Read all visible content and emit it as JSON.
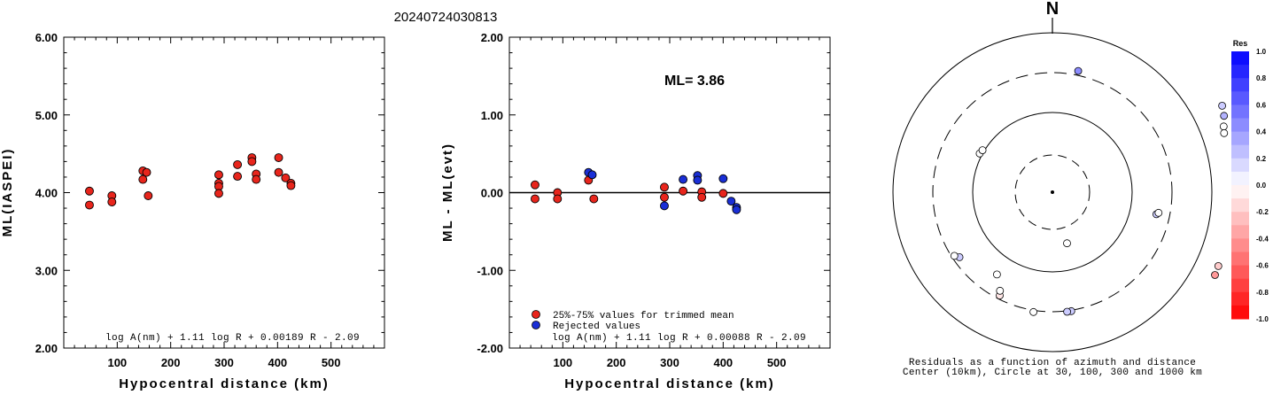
{
  "title": "20240724030813",
  "chart_data": [
    {
      "type": "scatter",
      "ylabel": "ML(IASPEI)",
      "xlabel": "Hypocentral distance (km)",
      "xlim": [
        0,
        600
      ],
      "ylim": [
        2.0,
        6.0
      ],
      "x_ticks": [
        "100",
        "200",
        "300",
        "400",
        "500"
      ],
      "y_ticks": [
        "2.00",
        "3.00",
        "4.00",
        "5.00",
        "6.00"
      ],
      "formula": "log A(nm) + 1.11 log R + 0.00189 R - 2.09",
      "series": [
        {
          "color": "#e8251c",
          "points": [
            [
              48,
              4.02
            ],
            [
              48,
              3.84
            ],
            [
              90,
              3.96
            ],
            [
              90,
              3.88
            ],
            [
              148,
              4.28
            ],
            [
              148,
              4.17
            ],
            [
              155,
              4.26
            ],
            [
              158,
              3.96
            ],
            [
              290,
              4.23
            ],
            [
              290,
              4.12
            ],
            [
              290,
              4.08
            ],
            [
              290,
              3.99
            ],
            [
              325,
              4.36
            ],
            [
              325,
              4.21
            ],
            [
              352,
              4.45
            ],
            [
              352,
              4.4
            ],
            [
              360,
              4.24
            ],
            [
              360,
              4.17
            ],
            [
              402,
              4.45
            ],
            [
              402,
              4.26
            ],
            [
              415,
              4.19
            ],
            [
              425,
              4.12
            ],
            [
              425,
              4.09
            ]
          ]
        }
      ]
    },
    {
      "type": "scatter",
      "ylabel": "ML - ML(evt)",
      "xlabel": "Hypocentral distance (km)",
      "xlim": [
        0,
        600
      ],
      "ylim": [
        -2.0,
        2.0
      ],
      "x_ticks": [
        "100",
        "200",
        "300",
        "400",
        "500"
      ],
      "y_ticks": [
        "-2.00",
        "-1.00",
        "0.00",
        "1.00",
        "2.00"
      ],
      "annotation": "ML= 3.86",
      "formula": "log A(nm) + 1.11 log R + 0.00088 R - 2.09",
      "legend": [
        "25%-75% values for trimmed mean",
        "Rejected values"
      ],
      "series": [
        {
          "name": "25%-75% values for trimmed mean",
          "color": "#e8251c",
          "points": [
            [
              48,
              0.1
            ],
            [
              48,
              -0.08
            ],
            [
              90,
              0.0
            ],
            [
              90,
              -0.08
            ],
            [
              148,
              0.16
            ],
            [
              158,
              -0.08
            ],
            [
              290,
              0.07
            ],
            [
              290,
              -0.06
            ],
            [
              325,
              0.02
            ],
            [
              360,
              0.01
            ],
            [
              360,
              -0.06
            ],
            [
              400,
              -0.01
            ]
          ]
        },
        {
          "name": "Rejected values",
          "color": "#1a2fd6",
          "points": [
            [
              148,
              0.26
            ],
            [
              155,
              0.23
            ],
            [
              290,
              -0.17
            ],
            [
              325,
              0.17
            ],
            [
              352,
              0.22
            ],
            [
              352,
              0.16
            ],
            [
              400,
              0.18
            ],
            [
              415,
              -0.11
            ],
            [
              425,
              -0.19
            ],
            [
              425,
              -0.22
            ]
          ]
        }
      ]
    },
    {
      "type": "polar",
      "north_label": "N",
      "caption": [
        "Residuals as a function of azimuth and distance",
        "Center (10km), Circle at 30, 100, 300 and 1000 km"
      ],
      "colorbar_title": "Res",
      "colorbar_ticks": [
        "1.0",
        "0.8",
        "0.6",
        "0.4",
        "0.2",
        "0.0",
        "-0.2",
        "-0.4",
        "-0.6",
        "-0.8",
        "-1.0"
      ],
      "stations": [
        {
          "azimuth": 12,
          "distance": 140,
          "residual": 0.45
        },
        {
          "azimuth": 63,
          "distance": 215,
          "residual": 0.2
        },
        {
          "azimuth": 66,
          "distance": 212,
          "residual": 0.3
        },
        {
          "azimuth": 69,
          "distance": 207,
          "residual": 0.0
        },
        {
          "azimuth": 71,
          "distance": 205,
          "residual": 0.0
        },
        {
          "azimuth": 102,
          "distance": 120,
          "residual": 0.2
        },
        {
          "azimuth": 101,
          "distance": 122,
          "residual": 0.0
        },
        {
          "azimuth": 114,
          "distance": 205,
          "residual": -0.2
        },
        {
          "azimuth": 117,
          "distance": 206,
          "residual": -0.4
        },
        {
          "azimuth": 164,
          "distance": 60,
          "residual": 0.0
        },
        {
          "azimuth": 171,
          "distance": 136,
          "residual": 0.2
        },
        {
          "azimuth": 173,
          "distance": 136,
          "residual": 0.2
        },
        {
          "azimuth": 189,
          "distance": 137,
          "residual": 0.0
        },
        {
          "azimuth": 207,
          "distance": 131,
          "residual": -0.1
        },
        {
          "azimuth": 208,
          "distance": 126,
          "residual": 0.0
        },
        {
          "azimuth": 214,
          "distance": 112,
          "residual": 0.0
        },
        {
          "azimuth": 235,
          "distance": 128,
          "residual": 0.2
        },
        {
          "azimuth": 237,
          "distance": 132,
          "residual": 0.0
        },
        {
          "azimuth": 298,
          "distance": 93,
          "residual": 0.0
        },
        {
          "azimuth": 301,
          "distance": 92,
          "residual": 0.0
        }
      ]
    }
  ]
}
